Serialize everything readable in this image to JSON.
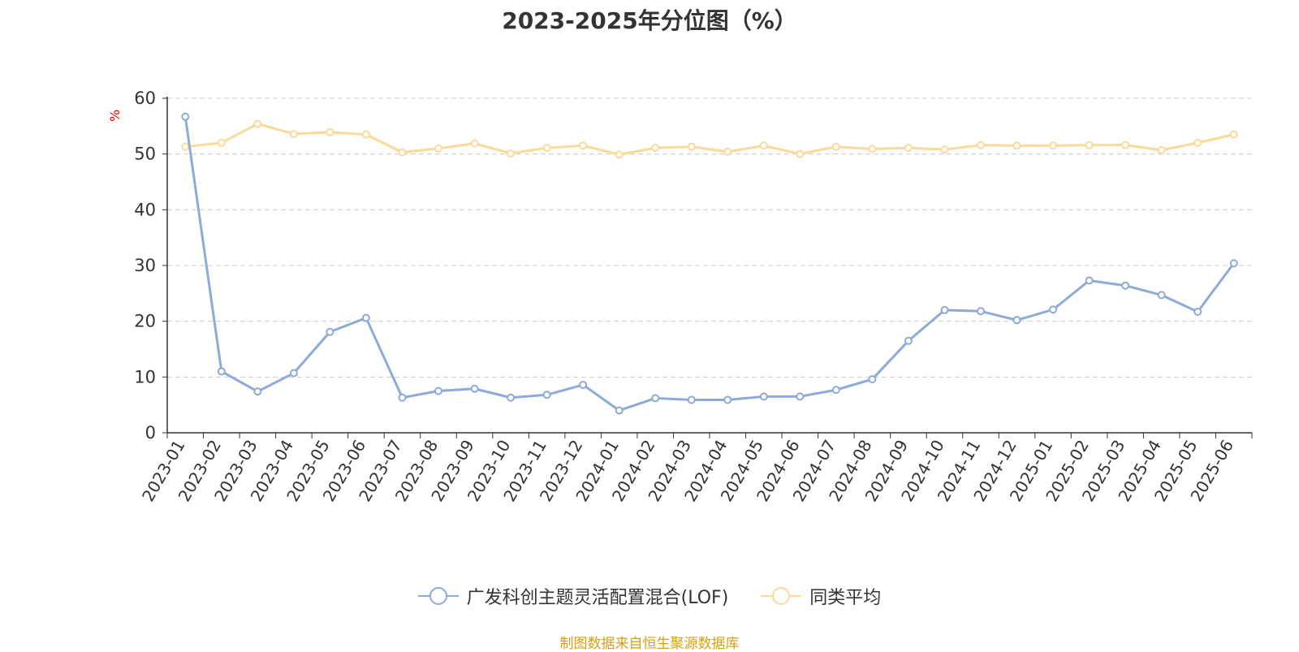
{
  "chart_data": {
    "type": "line",
    "title": "2023-2025年分位图（%）",
    "ylabel": "%",
    "ylim": [
      0,
      60
    ],
    "yticks": [
      0,
      10,
      20,
      30,
      40,
      50,
      60
    ],
    "grid": true,
    "legend_position": "bottom",
    "categories": [
      "2023-01",
      "2023-02",
      "2023-03",
      "2023-04",
      "2023-05",
      "2023-06",
      "2023-07",
      "2023-08",
      "2023-09",
      "2023-10",
      "2023-11",
      "2023-12",
      "2024-01",
      "2024-02",
      "2024-03",
      "2024-04",
      "2024-05",
      "2024-06",
      "2024-07",
      "2024-08",
      "2024-09",
      "2024-10",
      "2024-11",
      "2024-12",
      "2025-01",
      "2025-02",
      "2025-03",
      "2025-04",
      "2025-05",
      "2025-06"
    ],
    "series": [
      {
        "name": "广发科创主题灵活配置混合(LOF)",
        "color": "#8cabd9",
        "values": [
          56.7,
          11.0,
          7.4,
          10.7,
          18.1,
          20.6,
          6.3,
          7.5,
          7.9,
          6.3,
          6.8,
          8.6,
          4.0,
          6.2,
          5.9,
          5.9,
          6.5,
          6.5,
          7.7,
          9.6,
          16.5,
          22.0,
          21.8,
          20.2,
          22.1,
          27.3,
          26.4,
          24.7,
          21.7,
          30.4
        ]
      },
      {
        "name": "同类平均",
        "color": "#fcd998",
        "values": [
          51.3,
          52.0,
          55.4,
          53.6,
          53.9,
          53.5,
          50.3,
          51.0,
          51.9,
          50.1,
          51.1,
          51.5,
          49.9,
          51.1,
          51.3,
          50.4,
          51.5,
          50.0,
          51.3,
          50.9,
          51.1,
          50.8,
          51.6,
          51.5,
          51.5,
          51.6,
          51.6,
          50.7,
          52.0,
          53.5
        ]
      }
    ]
  },
  "footer": {
    "source": "制图数据来自恒生聚源数据库"
  },
  "colors": {
    "axis": "#333333",
    "grid": "#cccccc",
    "source_text": "#d4a017"
  }
}
